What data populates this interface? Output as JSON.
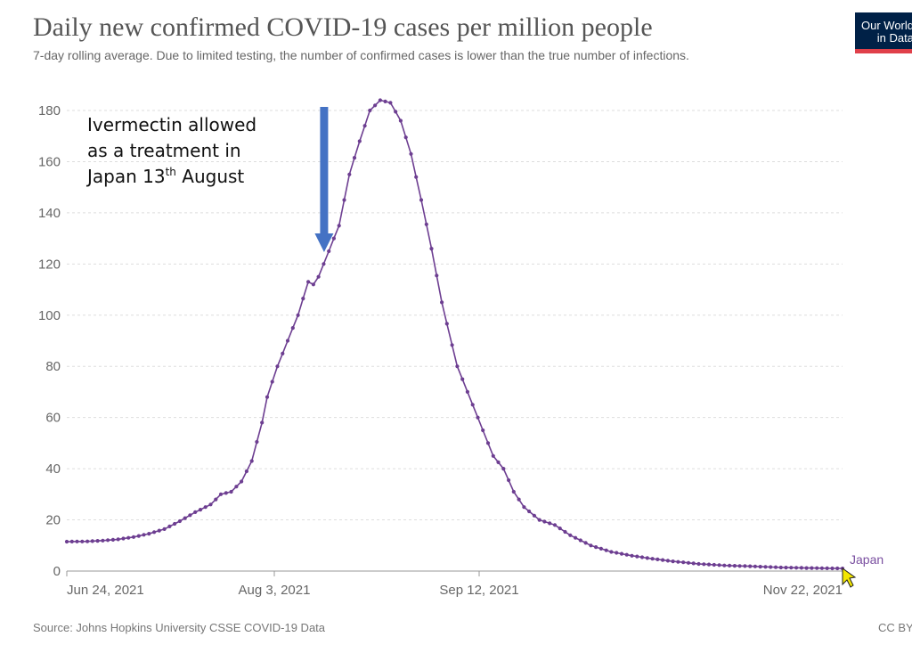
{
  "header": {
    "title": "Daily new confirmed COVID-19 cases per million people",
    "subtitle": "7-day rolling average. Due to limited testing, the number of confirmed cases is lower than the true number of infections.",
    "logo_line1": "Our World",
    "logo_line2": "in Data",
    "logo_colors": {
      "background": "#002147",
      "underline": "#e0404a"
    }
  },
  "footer": {
    "source": "Source: Johns Hopkins University CSSE COVID-19 Data",
    "license": "CC BY"
  },
  "chart_data": {
    "type": "line",
    "title": "Daily new confirmed COVID-19 cases per million people",
    "subtitle": "7-day rolling average. Due to limited testing, the number of confirmed cases is lower than the true number of infections.",
    "x_type": "date",
    "xlim": [
      "2021-06-24",
      "2021-11-22"
    ],
    "ylim": [
      0,
      180
    ],
    "yticks": [
      0,
      20,
      40,
      60,
      80,
      100,
      120,
      140,
      160,
      180
    ],
    "xticks": [
      "Jun 24, 2021",
      "Aug 3, 2021",
      "Sep 12, 2021",
      "Nov 22, 2021"
    ],
    "grid": "horizontal dashed",
    "line_color": "#6d3e91",
    "annotation": {
      "text_lines": [
        "Ivermectin allowed",
        "as a treatment in",
        "Japan 13"
      ],
      "superscript": "th",
      "text_tail": " August",
      "arrow_date": "2021-08-13",
      "arrow_color": "#4472c4"
    },
    "series": [
      {
        "name": "Japan",
        "points": [
          [
            "2021-06-24",
            11.5
          ],
          [
            "2021-06-28",
            11.6
          ],
          [
            "2021-07-01",
            11.9
          ],
          [
            "2021-07-04",
            12.4
          ],
          [
            "2021-07-07",
            13.3
          ],
          [
            "2021-07-10",
            14.6
          ],
          [
            "2021-07-13",
            16.4
          ],
          [
            "2021-07-16",
            19.5
          ],
          [
            "2021-07-19",
            23.0
          ],
          [
            "2021-07-22",
            26.0
          ],
          [
            "2021-07-24",
            30.0
          ],
          [
            "2021-07-26",
            31.0
          ],
          [
            "2021-07-28",
            35.0
          ],
          [
            "2021-07-30",
            43.0
          ],
          [
            "2021-08-01",
            58.0
          ],
          [
            "2021-08-02",
            68.0
          ],
          [
            "2021-08-04",
            80.0
          ],
          [
            "2021-08-06",
            90.0
          ],
          [
            "2021-08-08",
            100.0
          ],
          [
            "2021-08-10",
            113.0
          ],
          [
            "2021-08-11",
            112.0
          ],
          [
            "2021-08-12",
            115.0
          ],
          [
            "2021-08-14",
            125.0
          ],
          [
            "2021-08-16",
            135.0
          ],
          [
            "2021-08-18",
            155.0
          ],
          [
            "2021-08-20",
            168.0
          ],
          [
            "2021-08-22",
            180.0
          ],
          [
            "2021-08-24",
            184.0
          ],
          [
            "2021-08-26",
            183.0
          ],
          [
            "2021-08-28",
            176.0
          ],
          [
            "2021-08-30",
            163.0
          ],
          [
            "2021-09-01",
            145.0
          ],
          [
            "2021-09-03",
            126.0
          ],
          [
            "2021-09-05",
            105.0
          ],
          [
            "2021-09-08",
            80.0
          ],
          [
            "2021-09-10",
            70.0
          ],
          [
            "2021-09-12",
            60.0
          ],
          [
            "2021-09-15",
            45.0
          ],
          [
            "2021-09-17",
            40.0
          ],
          [
            "2021-09-19",
            31.0
          ],
          [
            "2021-09-21",
            25.0
          ],
          [
            "2021-09-24",
            20.0
          ],
          [
            "2021-09-27",
            18.0
          ],
          [
            "2021-09-30",
            14.0
          ],
          [
            "2021-10-04",
            10.0
          ],
          [
            "2021-10-08",
            7.5
          ],
          [
            "2021-10-12",
            6.0
          ],
          [
            "2021-10-16",
            4.8
          ],
          [
            "2021-10-20",
            3.8
          ],
          [
            "2021-10-25",
            2.8
          ],
          [
            "2021-10-30",
            2.2
          ],
          [
            "2021-11-05",
            1.8
          ],
          [
            "2021-11-10",
            1.4
          ],
          [
            "2021-11-15",
            1.2
          ],
          [
            "2021-11-22",
            1.0
          ]
        ]
      }
    ]
  }
}
